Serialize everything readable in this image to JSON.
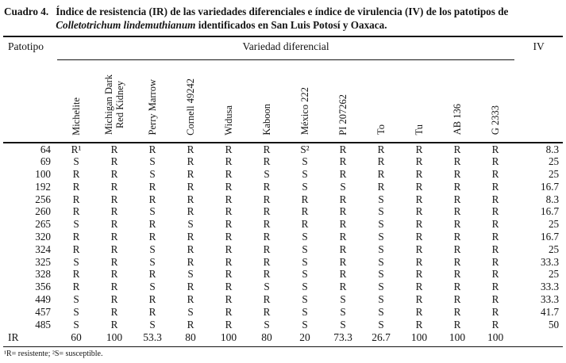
{
  "caption": {
    "label": "Cuadro 4.",
    "part1": "Índice de resistencia (IR) de las variedades diferenciales e índice de virulencia (IV) de los patotipos de",
    "species": "Colletotrichum lindemuthianum",
    "part2": "identificados en San Luis Potosí y Oaxaca."
  },
  "table": {
    "col1_header": "Patotipo",
    "group_header": "Variedad diferencial",
    "iv_header": "IV",
    "varieties": [
      "Michelite",
      "Michigan Dark\nRed Kidney",
      "Perry Marrow",
      "Cornell 49242",
      "Widusa",
      "Kaboon",
      "México 222",
      "PI 207262",
      "To",
      "Tu",
      "AB 136",
      "G 2333"
    ],
    "rows": [
      {
        "patotipo": "64",
        "values": [
          "R¹",
          "R",
          "R",
          "R",
          "R",
          "R",
          "S²",
          "R",
          "R",
          "R",
          "R",
          "R"
        ],
        "iv": "8.3"
      },
      {
        "patotipo": "69",
        "values": [
          "S",
          "R",
          "S",
          "R",
          "R",
          "R",
          "S",
          "R",
          "R",
          "R",
          "R",
          "R"
        ],
        "iv": "25"
      },
      {
        "patotipo": "100",
        "values": [
          "R",
          "R",
          "S",
          "R",
          "R",
          "S",
          "S",
          "R",
          "R",
          "R",
          "R",
          "R"
        ],
        "iv": "25"
      },
      {
        "patotipo": "192",
        "values": [
          "R",
          "R",
          "R",
          "R",
          "R",
          "R",
          "S",
          "S",
          "R",
          "R",
          "R",
          "R"
        ],
        "iv": "16.7"
      },
      {
        "patotipo": "256",
        "values": [
          "R",
          "R",
          "R",
          "R",
          "R",
          "R",
          "R",
          "R",
          "S",
          "R",
          "R",
          "R"
        ],
        "iv": "8.3"
      },
      {
        "patotipo": "260",
        "values": [
          "R",
          "R",
          "S",
          "R",
          "R",
          "R",
          "R",
          "R",
          "S",
          "R",
          "R",
          "R"
        ],
        "iv": "16.7"
      },
      {
        "patotipo": "265",
        "values": [
          "S",
          "R",
          "R",
          "S",
          "R",
          "R",
          "R",
          "R",
          "S",
          "R",
          "R",
          "R"
        ],
        "iv": "25"
      },
      {
        "patotipo": "320",
        "values": [
          "R",
          "R",
          "R",
          "R",
          "R",
          "R",
          "S",
          "R",
          "S",
          "R",
          "R",
          "R"
        ],
        "iv": "16.7"
      },
      {
        "patotipo": "324",
        "values": [
          "R",
          "R",
          "S",
          "R",
          "R",
          "R",
          "S",
          "R",
          "S",
          "R",
          "R",
          "R"
        ],
        "iv": "25"
      },
      {
        "patotipo": "325",
        "values": [
          "S",
          "R",
          "S",
          "R",
          "R",
          "R",
          "S",
          "R",
          "S",
          "R",
          "R",
          "R"
        ],
        "iv": "33.3"
      },
      {
        "patotipo": "328",
        "values": [
          "R",
          "R",
          "R",
          "S",
          "R",
          "R",
          "S",
          "R",
          "S",
          "R",
          "R",
          "R"
        ],
        "iv": "25"
      },
      {
        "patotipo": "356",
        "values": [
          "R",
          "R",
          "S",
          "R",
          "R",
          "S",
          "S",
          "R",
          "S",
          "R",
          "R",
          "R"
        ],
        "iv": "33.3"
      },
      {
        "patotipo": "449",
        "values": [
          "S",
          "R",
          "R",
          "R",
          "R",
          "R",
          "S",
          "S",
          "S",
          "R",
          "R",
          "R"
        ],
        "iv": "33.3"
      },
      {
        "patotipo": "457",
        "values": [
          "S",
          "R",
          "R",
          "S",
          "R",
          "R",
          "S",
          "S",
          "S",
          "R",
          "R",
          "R"
        ],
        "iv": "41.7"
      },
      {
        "patotipo": "485",
        "values": [
          "S",
          "R",
          "S",
          "R",
          "R",
          "S",
          "S",
          "S",
          "S",
          "R",
          "R",
          "R"
        ],
        "iv": "50"
      }
    ],
    "ir_row": {
      "label": "IR",
      "values": [
        "60",
        "100",
        "53.3",
        "80",
        "100",
        "80",
        "20",
        "73.3",
        "26.7",
        "100",
        "100",
        "100"
      ],
      "iv": ""
    }
  },
  "footnote": "¹R= resistente; ²S= susceptible.",
  "colors": {
    "background": "#ffffff",
    "text": "#141414",
    "rule": "#141414"
  }
}
